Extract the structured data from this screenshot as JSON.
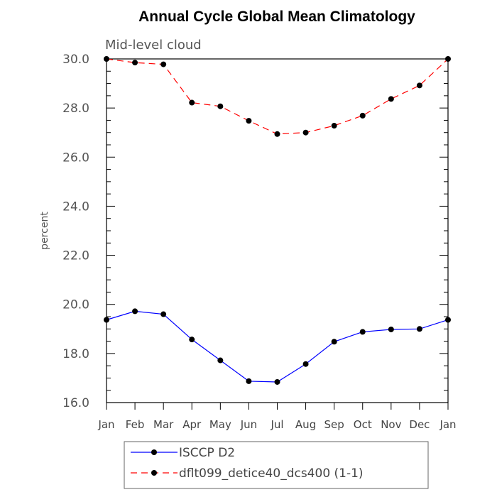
{
  "chart_data": {
    "type": "line",
    "title": "Annual Cycle Global Mean Climatology",
    "subtitle": "Mid-level cloud",
    "xlabel": "",
    "ylabel": "percent",
    "categories": [
      "Jan",
      "Feb",
      "Mar",
      "Apr",
      "May",
      "Jun",
      "Jul",
      "Aug",
      "Sep",
      "Oct",
      "Nov",
      "Dec",
      "Jan"
    ],
    "ylim": [
      16.0,
      30.0
    ],
    "yticks": [
      "16.0",
      "18.0",
      "20.0",
      "22.0",
      "24.0",
      "26.0",
      "28.0",
      "30.0"
    ],
    "grid": false,
    "legend_position": "bottom",
    "series": [
      {
        "name": "ISCCP D2",
        "color": "#0000ff",
        "dash": "solid",
        "values": [
          19.37,
          19.72,
          19.6,
          18.57,
          17.72,
          16.87,
          16.84,
          17.57,
          18.48,
          18.88,
          18.98,
          19.0,
          19.37
        ]
      },
      {
        "name": "dflt099_detice40_dcs400 (1-1)",
        "color": "#ff0000",
        "dash": "dashed",
        "values": [
          30.0,
          29.85,
          29.78,
          28.22,
          28.07,
          27.48,
          26.94,
          27.0,
          27.28,
          27.69,
          28.37,
          28.92,
          30.0
        ]
      }
    ]
  }
}
